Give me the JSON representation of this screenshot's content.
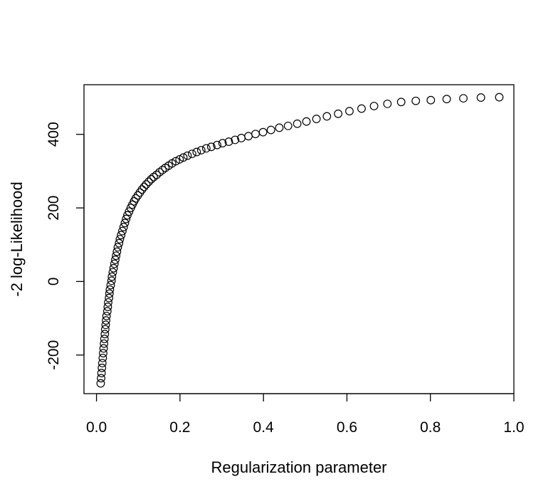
{
  "chart_data": {
    "type": "scatter",
    "title": "",
    "xlabel": "Regularization parameter",
    "ylabel": "-2 log-Likelihood",
    "xlim": [
      -0.03,
      1.0
    ],
    "ylim": [
      -305,
      535
    ],
    "x_ticks": [
      {
        "value": 0.0,
        "label": "0.0"
      },
      {
        "value": 0.2,
        "label": "0.2"
      },
      {
        "value": 0.4,
        "label": "0.4"
      },
      {
        "value": 0.6,
        "label": "0.6"
      },
      {
        "value": 0.8,
        "label": "0.8"
      },
      {
        "value": 1.0,
        "label": "1.0"
      }
    ],
    "y_ticks": [
      {
        "value": -200,
        "label": "-200"
      },
      {
        "value": 0,
        "label": "0"
      },
      {
        "value": 200,
        "label": "200"
      },
      {
        "value": 400,
        "label": "400"
      }
    ],
    "grid": false,
    "legend": "none",
    "marker": "open-circle",
    "colors": {
      "marker": "#000000",
      "axis": "#000000",
      "background": "#ffffff"
    },
    "series": [
      {
        "points": [
          [
            0.01,
            -277
          ],
          [
            0.011,
            -263
          ],
          [
            0.012,
            -249
          ],
          [
            0.013,
            -235
          ],
          [
            0.014,
            -222
          ],
          [
            0.015,
            -208
          ],
          [
            0.016,
            -195
          ],
          [
            0.017,
            -182
          ],
          [
            0.018,
            -169
          ],
          [
            0.019,
            -156
          ],
          [
            0.02,
            -143
          ],
          [
            0.021,
            -130
          ],
          [
            0.022,
            -118
          ],
          [
            0.023,
            -106
          ],
          [
            0.024,
            -94
          ],
          [
            0.026,
            -81
          ],
          [
            0.027,
            -69
          ],
          [
            0.028,
            -57
          ],
          [
            0.03,
            -45
          ],
          [
            0.031,
            -33
          ],
          [
            0.032,
            -22
          ],
          [
            0.034,
            -10
          ],
          [
            0.036,
            2
          ],
          [
            0.037,
            13
          ],
          [
            0.039,
            25
          ],
          [
            0.041,
            36
          ],
          [
            0.043,
            48
          ],
          [
            0.045,
            59
          ],
          [
            0.047,
            70
          ],
          [
            0.049,
            81
          ],
          [
            0.051,
            93
          ],
          [
            0.054,
            104
          ],
          [
            0.056,
            115
          ],
          [
            0.059,
            126
          ],
          [
            0.062,
            137
          ],
          [
            0.065,
            148
          ],
          [
            0.068,
            159
          ],
          [
            0.071,
            170
          ],
          [
            0.074,
            180
          ],
          [
            0.078,
            190
          ],
          [
            0.082,
            200
          ],
          [
            0.086,
            209
          ],
          [
            0.09,
            218
          ],
          [
            0.094,
            226
          ],
          [
            0.099,
            234
          ],
          [
            0.104,
            242
          ],
          [
            0.109,
            250
          ],
          [
            0.114,
            257
          ],
          [
            0.119,
            264
          ],
          [
            0.125,
            271
          ],
          [
            0.131,
            278
          ],
          [
            0.137,
            284
          ],
          [
            0.144,
            290
          ],
          [
            0.151,
            297
          ],
          [
            0.158,
            303
          ],
          [
            0.165,
            309
          ],
          [
            0.173,
            315
          ],
          [
            0.181,
            321
          ],
          [
            0.19,
            327
          ],
          [
            0.199,
            332
          ],
          [
            0.208,
            337
          ],
          [
            0.218,
            342
          ],
          [
            0.229,
            347
          ],
          [
            0.24,
            352
          ],
          [
            0.251,
            357
          ],
          [
            0.263,
            362
          ],
          [
            0.275,
            366
          ],
          [
            0.289,
            371
          ],
          [
            0.302,
            376
          ],
          [
            0.317,
            380
          ],
          [
            0.332,
            385
          ],
          [
            0.347,
            390
          ],
          [
            0.364,
            395
          ],
          [
            0.381,
            401
          ],
          [
            0.399,
            406
          ],
          [
            0.418,
            412
          ],
          [
            0.438,
            418
          ],
          [
            0.459,
            423
          ],
          [
            0.481,
            429
          ],
          [
            0.503,
            435
          ],
          [
            0.527,
            442
          ],
          [
            0.552,
            449
          ],
          [
            0.579,
            456
          ],
          [
            0.606,
            463
          ],
          [
            0.635,
            470
          ],
          [
            0.665,
            477
          ],
          [
            0.697,
            483
          ],
          [
            0.73,
            488
          ],
          [
            0.765,
            491
          ],
          [
            0.801,
            493
          ],
          [
            0.839,
            496
          ],
          [
            0.879,
            498
          ],
          [
            0.921,
            500
          ],
          [
            0.965,
            501
          ]
        ]
      }
    ]
  }
}
